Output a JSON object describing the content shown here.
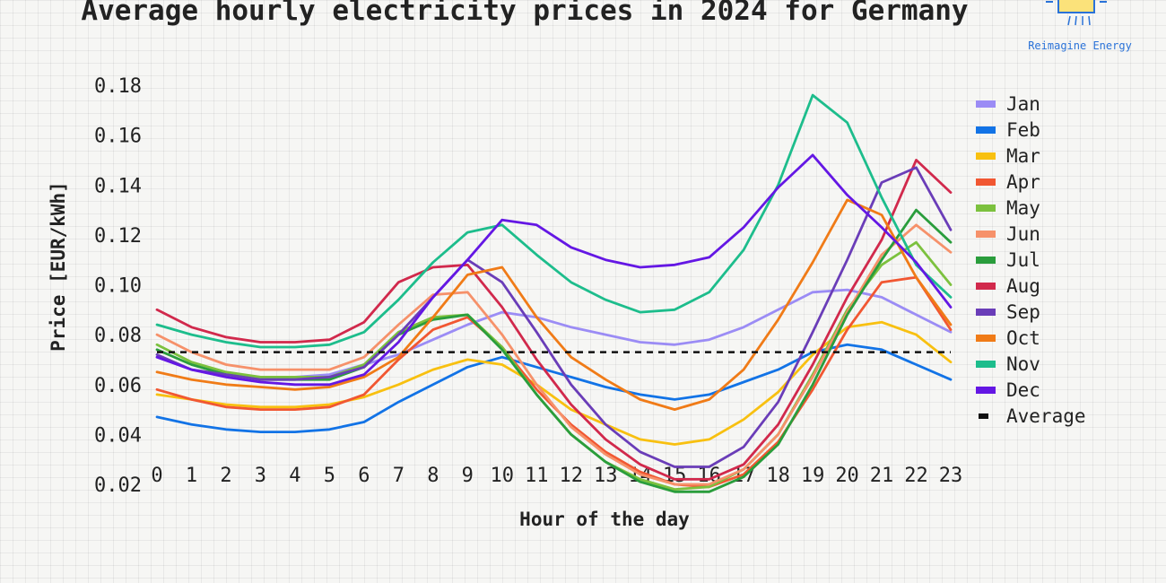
{
  "brand": {
    "name": "Reimagine Energy",
    "logo_icon": "sun-panel-icon"
  },
  "chart_data": {
    "type": "line",
    "title": "Average hourly electricity prices in 2024 for Germany",
    "xlabel": "Hour of the day",
    "ylabel": "Price [EUR/kWh]",
    "x": [
      0,
      1,
      2,
      3,
      4,
      5,
      6,
      7,
      8,
      9,
      10,
      11,
      12,
      13,
      14,
      15,
      16,
      17,
      18,
      19,
      20,
      21,
      22,
      23
    ],
    "x_tick_labels": [
      "0",
      "1",
      "2",
      "3",
      "4",
      "5",
      "6",
      "7",
      "8",
      "9",
      "10",
      "11",
      "12",
      "13",
      "14",
      "15",
      "16",
      "17",
      "18",
      "19",
      "20",
      "21",
      "22",
      "23"
    ],
    "y_ticks": [
      0.02,
      0.04,
      0.06,
      0.08,
      0.1,
      0.12,
      0.14,
      0.16,
      0.18
    ],
    "y_tick_labels": [
      "0.02",
      "0.04",
      "0.06",
      "0.08",
      "0.10",
      "0.12",
      "0.14",
      "0.16",
      "0.18"
    ],
    "ylim": [
      0.02,
      0.185
    ],
    "legend_position": "right",
    "series": [
      {
        "name": "Jan",
        "color": "#9b8cf5",
        "values": [
          0.071,
          0.066,
          0.064,
          0.063,
          0.063,
          0.064,
          0.068,
          0.072,
          0.078,
          0.084,
          0.089,
          0.087,
          0.083,
          0.08,
          0.077,
          0.076,
          0.078,
          0.083,
          0.09,
          0.097,
          0.098,
          0.095,
          0.088,
          0.081
        ]
      },
      {
        "name": "Feb",
        "color": "#1273e6",
        "values": [
          0.047,
          0.044,
          0.042,
          0.041,
          0.041,
          0.042,
          0.045,
          0.053,
          0.06,
          0.067,
          0.071,
          0.067,
          0.063,
          0.059,
          0.056,
          0.054,
          0.056,
          0.061,
          0.066,
          0.073,
          0.076,
          0.074,
          0.068,
          0.062
        ]
      },
      {
        "name": "Mar",
        "color": "#f8c010",
        "values": [
          0.056,
          0.054,
          0.052,
          0.051,
          0.051,
          0.052,
          0.055,
          0.06,
          0.066,
          0.07,
          0.068,
          0.06,
          0.05,
          0.044,
          0.038,
          0.036,
          0.038,
          0.046,
          0.057,
          0.072,
          0.083,
          0.085,
          0.08,
          0.069
        ]
      },
      {
        "name": "Apr",
        "color": "#f15732",
        "values": [
          0.058,
          0.054,
          0.051,
          0.05,
          0.05,
          0.051,
          0.056,
          0.07,
          0.082,
          0.087,
          0.075,
          0.058,
          0.044,
          0.033,
          0.025,
          0.02,
          0.019,
          0.024,
          0.037,
          0.058,
          0.082,
          0.101,
          0.103,
          0.082
        ]
      },
      {
        "name": "May",
        "color": "#7cc13e",
        "values": [
          0.076,
          0.069,
          0.065,
          0.063,
          0.063,
          0.063,
          0.068,
          0.081,
          0.087,
          0.088,
          0.075,
          0.056,
          0.04,
          0.029,
          0.022,
          0.018,
          0.019,
          0.026,
          0.04,
          0.064,
          0.09,
          0.108,
          0.117,
          0.1
        ]
      },
      {
        "name": "Jun",
        "color": "#f6916a",
        "values": [
          0.08,
          0.073,
          0.068,
          0.066,
          0.066,
          0.066,
          0.071,
          0.084,
          0.096,
          0.097,
          0.08,
          0.06,
          0.043,
          0.032,
          0.024,
          0.02,
          0.02,
          0.026,
          0.04,
          0.063,
          0.089,
          0.112,
          0.124,
          0.113
        ]
      },
      {
        "name": "Jul",
        "color": "#2a9d3c",
        "values": [
          0.074,
          0.068,
          0.064,
          0.062,
          0.062,
          0.062,
          0.067,
          0.08,
          0.086,
          0.088,
          0.074,
          0.056,
          0.04,
          0.029,
          0.021,
          0.017,
          0.017,
          0.023,
          0.036,
          0.06,
          0.088,
          0.11,
          0.13,
          0.117
        ]
      },
      {
        "name": "Aug",
        "color": "#d1294c",
        "values": [
          0.09,
          0.083,
          0.079,
          0.077,
          0.077,
          0.078,
          0.085,
          0.101,
          0.107,
          0.108,
          0.091,
          0.07,
          0.052,
          0.038,
          0.028,
          0.022,
          0.022,
          0.028,
          0.044,
          0.068,
          0.095,
          0.118,
          0.15,
          0.137
        ]
      },
      {
        "name": "Sep",
        "color": "#6a3db8",
        "values": [
          0.072,
          0.066,
          0.064,
          0.062,
          0.062,
          0.063,
          0.067,
          0.08,
          0.095,
          0.11,
          0.101,
          0.081,
          0.06,
          0.044,
          0.033,
          0.027,
          0.027,
          0.035,
          0.053,
          0.081,
          0.11,
          0.141,
          0.147,
          0.122
        ]
      },
      {
        "name": "Oct",
        "color": "#f07b17",
        "values": [
          0.065,
          0.062,
          0.06,
          0.059,
          0.058,
          0.059,
          0.063,
          0.071,
          0.087,
          0.104,
          0.107,
          0.087,
          0.071,
          0.062,
          0.054,
          0.05,
          0.054,
          0.066,
          0.086,
          0.109,
          0.134,
          0.128,
          0.103,
          0.084
        ]
      },
      {
        "name": "Nov",
        "color": "#1dbd8c",
        "values": [
          0.084,
          0.08,
          0.077,
          0.075,
          0.075,
          0.076,
          0.081,
          0.094,
          0.109,
          0.121,
          0.124,
          0.112,
          0.101,
          0.094,
          0.089,
          0.09,
          0.097,
          0.114,
          0.14,
          0.176,
          0.165,
          0.135,
          0.108,
          0.095
        ]
      },
      {
        "name": "Dec",
        "color": "#6417e4",
        "values": [
          0.071,
          0.066,
          0.063,
          0.061,
          0.06,
          0.06,
          0.064,
          0.077,
          0.095,
          0.11,
          0.126,
          0.124,
          0.115,
          0.11,
          0.107,
          0.108,
          0.111,
          0.123,
          0.139,
          0.152,
          0.136,
          0.123,
          0.109,
          0.091
        ]
      }
    ],
    "average": {
      "name": "Average",
      "value": 0.073,
      "style": "dashed",
      "color": "#111111"
    }
  }
}
